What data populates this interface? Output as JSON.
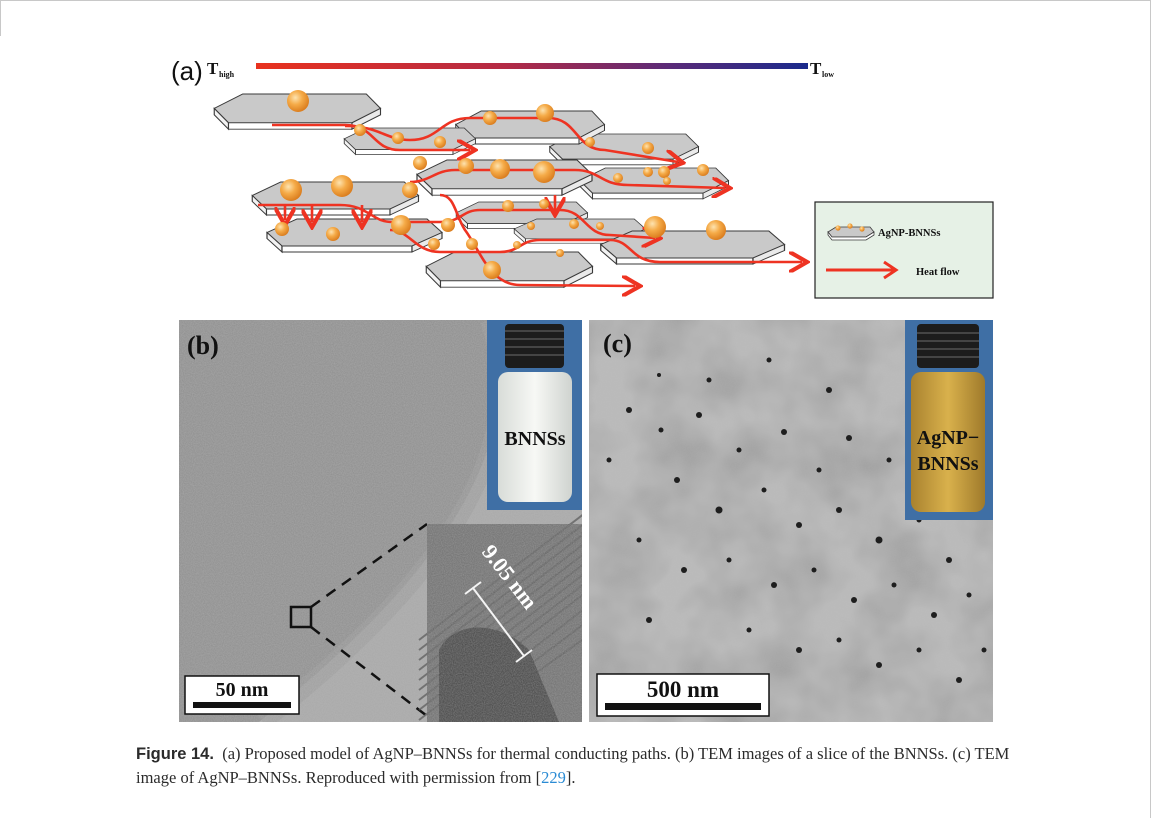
{
  "panel_a": {
    "label": "(a)",
    "t_high": "T",
    "t_high_sub": "high",
    "t_low": "T",
    "t_low_sub": "low",
    "legend": {
      "item1": "AgNP-BNNSs",
      "item2": "Heat flow"
    },
    "colors": {
      "hot": "#e8321e",
      "cold": "#1a2a8c",
      "sheet": "#c8c8c8",
      "particle": "#f2a23a",
      "legend_bg": "#e6f1e6"
    }
  },
  "panel_b": {
    "label": "(b)",
    "vial_label": "BNNSs",
    "inset_measure": "9.05 nm",
    "scale_bar": "50 nm"
  },
  "panel_c": {
    "label": "(c)",
    "vial_label_1": "AgNP−",
    "vial_label_2": "BNNSs",
    "scale_bar": "500 nm"
  },
  "caption": {
    "figure_no": "Figure 14.",
    "text_1": "(a) Proposed model of AgNP–BNNSs for thermal conducting paths. (b) TEM images of a slice of the BNNSs. (c) TEM",
    "text_2": "image of AgNP–BNNSs. Reproduced with permission from [",
    "ref": "229",
    "text_3": "]."
  }
}
